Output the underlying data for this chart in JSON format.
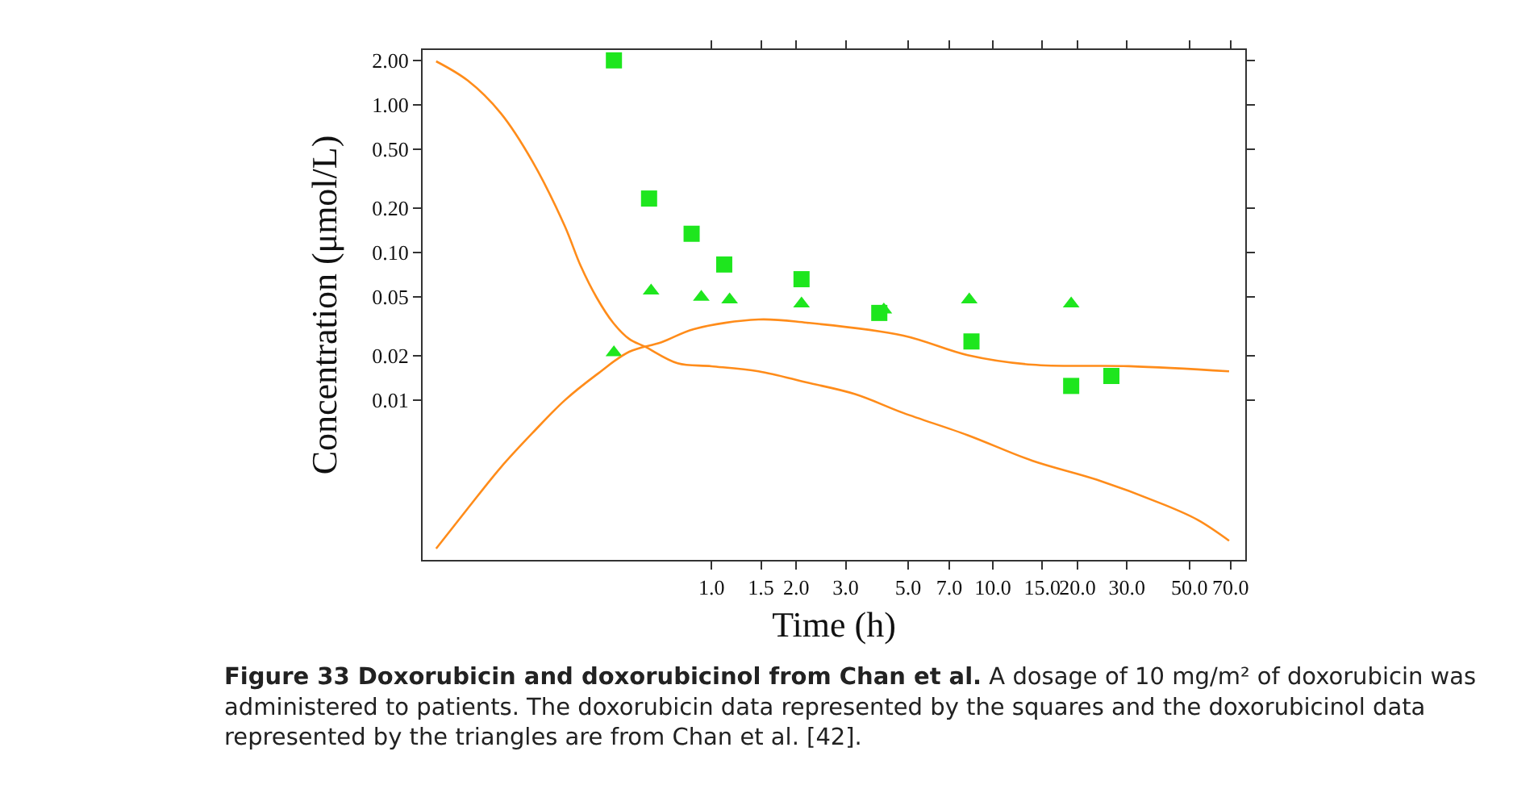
{
  "chart_data": {
    "type": "scatter",
    "xlabel": "Time (h)",
    "ylabel": "Concentration (μmol/L)",
    "log": "xy",
    "xlim": [
      0.094,
      79
    ],
    "ylim": [
      0.00083,
      2.35
    ],
    "xticks": [
      {
        "value": 1,
        "label": "1.0"
      },
      {
        "value": 1.5,
        "label": "1.5"
      },
      {
        "value": 2,
        "label": "2.0"
      },
      {
        "value": 3,
        "label": "3.0"
      },
      {
        "value": 5,
        "label": "5.0"
      },
      {
        "value": 7,
        "label": "7.0"
      },
      {
        "value": 10,
        "label": "10.0"
      },
      {
        "value": 15,
        "label": "15.0"
      },
      {
        "value": 20,
        "label": "20.0"
      },
      {
        "value": 30,
        "label": "30.0"
      },
      {
        "value": 50,
        "label": "50.0"
      },
      {
        "value": 70,
        "label": "70.0"
      }
    ],
    "yticks": [
      {
        "value": 2,
        "label": "2.00"
      },
      {
        "value": 1,
        "label": "1.00"
      },
      {
        "value": 0.5,
        "label": "0.50"
      },
      {
        "value": 0.2,
        "label": "0.20"
      },
      {
        "value": 0.1,
        "label": "0.10"
      },
      {
        "value": 0.05,
        "label": "0.05"
      },
      {
        "value": 0.02,
        "label": "0.02"
      },
      {
        "value": 0.01,
        "label": "0.01"
      }
    ],
    "series": [
      {
        "marker": "square",
        "color": "#1ee61e",
        "x": [
          0.45,
          0.6,
          0.85,
          1.11,
          2.09,
          3.95,
          8.4,
          19.0,
          26.4
        ],
        "values": [
          2.0,
          0.232,
          0.134,
          0.083,
          0.066,
          0.039,
          0.025,
          0.0125,
          0.0146
        ]
      },
      {
        "marker": "triangle",
        "color": "#1ee61e",
        "x": [
          0.45,
          0.61,
          0.92,
          1.16,
          2.09,
          4.1,
          8.25,
          19.0
        ],
        "values": [
          0.021,
          0.055,
          0.05,
          0.048,
          0.045,
          0.041,
          0.048,
          0.045
        ]
      },
      {
        "type": "line",
        "marker": "none",
        "color": "#ff8c1a",
        "x": [
          0.105,
          0.136,
          0.178,
          0.231,
          0.301,
          0.343,
          0.392,
          0.447,
          0.51,
          0.582,
          0.758,
          1.0,
          1.47,
          2.18,
          3.24,
          4.81,
          8.15,
          13.8,
          23.4,
          39.7,
          53.5,
          69.2
        ],
        "values": [
          1.97,
          1.46,
          0.88,
          0.414,
          0.151,
          0.081,
          0.049,
          0.0335,
          0.026,
          0.023,
          0.0178,
          0.017,
          0.0157,
          0.0132,
          0.011,
          0.0082,
          0.0058,
          0.0039,
          0.0029,
          0.002,
          0.00155,
          0.00112
        ]
      },
      {
        "type": "line",
        "marker": "none",
        "color": "#ff8c1a",
        "x": [
          0.105,
          0.136,
          0.178,
          0.231,
          0.301,
          0.392,
          0.51,
          0.664,
          0.865,
          1.47,
          2.18,
          4.81,
          8.15,
          13.8,
          30.5,
          69.2
        ],
        "values": [
          0.00099,
          0.00185,
          0.0035,
          0.006,
          0.01,
          0.015,
          0.0213,
          0.0247,
          0.0303,
          0.0352,
          0.0335,
          0.0274,
          0.0202,
          0.0174,
          0.017,
          0.0157
        ]
      }
    ],
    "annotations": [
      "Figure 33 Doxorubicin and doxorubicinol from Chan et al.",
      "A dosage of 10 mg/m² of doxorubicin was administered to patients. The doxorubicin data represented by the squares and the doxorubicinol data represented by the triangles are from Chan et al. [42]."
    ]
  }
}
